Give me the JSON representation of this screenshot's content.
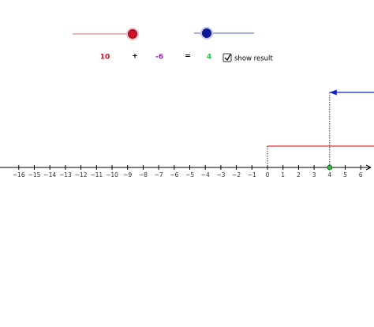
{
  "equation": {
    "a": 10,
    "plus": "+",
    "b": -6,
    "equals": "=",
    "result": 4,
    "checkbox_label": "show result",
    "checked": true
  },
  "number_line": {
    "ticks": [
      {
        "value": -16,
        "label": "−16"
      },
      {
        "value": -15,
        "label": "−15"
      },
      {
        "value": -14,
        "label": "−14"
      },
      {
        "value": -13,
        "label": "−13"
      },
      {
        "value": -12,
        "label": "−12"
      },
      {
        "value": -11,
        "label": "−11"
      },
      {
        "value": -10,
        "label": "−10"
      },
      {
        "value": -9,
        "label": "−9"
      },
      {
        "value": -8,
        "label": "−8"
      },
      {
        "value": -7,
        "label": "−7"
      },
      {
        "value": -6,
        "label": "−6"
      },
      {
        "value": -5,
        "label": "−5"
      },
      {
        "value": -4,
        "label": "−4"
      },
      {
        "value": -3,
        "label": "−3"
      },
      {
        "value": -2,
        "label": "−2"
      },
      {
        "value": -1,
        "label": "−1"
      },
      0,
      1,
      2,
      3,
      4,
      5,
      6
    ]
  }
}
